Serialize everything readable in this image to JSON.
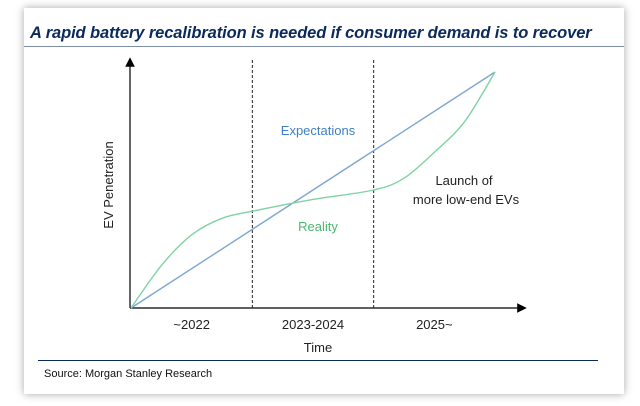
{
  "title": "A rapid battery recalibration is needed if consumer demand is to recover",
  "source": "Source: Morgan Stanley Research",
  "colors": {
    "title": "#0b2a5b",
    "expectations": "#7ea7cf",
    "reality": "#7fd3a2",
    "expectations_label": "#3f7fc2",
    "reality_label": "#4cb86e"
  },
  "chart_data": {
    "type": "line",
    "xlabel": "Time",
    "ylabel": "EV Penetration",
    "periods": [
      "~2022",
      "2023-2024",
      "2025~"
    ],
    "period_boundaries": [
      1,
      2
    ],
    "xlim": [
      0,
      3
    ],
    "ylim": [
      0,
      1
    ],
    "grid": false,
    "series": [
      {
        "name": "Expectations",
        "x": [
          0,
          3
        ],
        "values": [
          0,
          1
        ]
      },
      {
        "name": "Reality",
        "x": [
          0,
          0.25,
          0.5,
          0.75,
          1,
          1.5,
          2,
          2.25,
          2.5,
          2.75,
          3
        ],
        "values": [
          0,
          0.18,
          0.31,
          0.38,
          0.41,
          0.46,
          0.5,
          0.55,
          0.66,
          0.79,
          1
        ]
      }
    ],
    "annotations": [
      {
        "text": "Launch of",
        "x": 2.17,
        "y": 0.5
      },
      {
        "text": "more low-end EVs",
        "x": 2.17,
        "y": 0.45
      }
    ]
  }
}
